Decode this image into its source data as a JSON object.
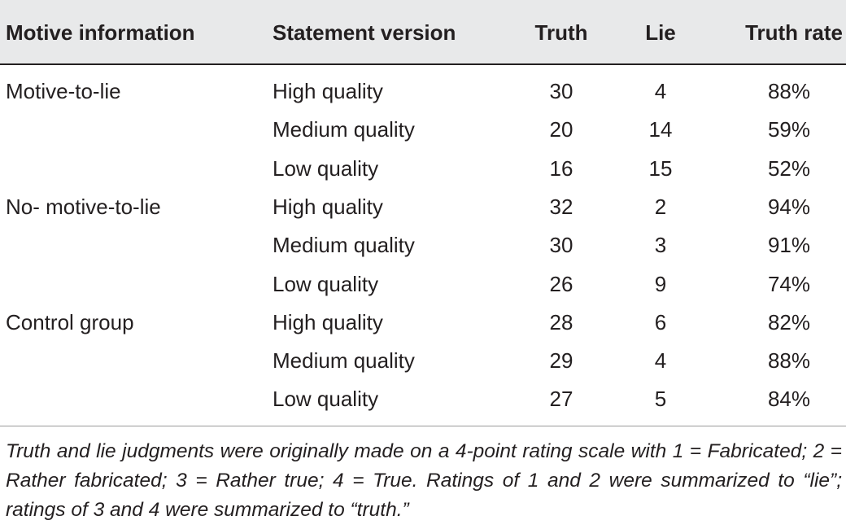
{
  "table": {
    "headers": {
      "motive": "Motive information",
      "version": "Statement version",
      "truth": "Truth",
      "lie": "Lie",
      "rate": "Truth rate"
    },
    "rows": [
      {
        "motive": "Motive-to-lie",
        "version": "High quality",
        "truth": "30",
        "lie": "4",
        "rate": "88%"
      },
      {
        "motive": "",
        "version": "Medium quality",
        "truth": "20",
        "lie": "14",
        "rate": "59%"
      },
      {
        "motive": "",
        "version": "Low quality",
        "truth": "16",
        "lie": "15",
        "rate": "52%"
      },
      {
        "motive": "No- motive-to-lie",
        "version": "High quality",
        "truth": "32",
        "lie": "2",
        "rate": "94%"
      },
      {
        "motive": "",
        "version": "Medium quality",
        "truth": "30",
        "lie": "3",
        "rate": "91%"
      },
      {
        "motive": "",
        "version": "Low quality",
        "truth": "26",
        "lie": "9",
        "rate": "74%"
      },
      {
        "motive": "Control group",
        "version": "High quality",
        "truth": "28",
        "lie": "6",
        "rate": "82%"
      },
      {
        "motive": "",
        "version": "Medium quality",
        "truth": "29",
        "lie": "4",
        "rate": "88%"
      },
      {
        "motive": "",
        "version": "Low quality",
        "truth": "27",
        "lie": "5",
        "rate": "84%"
      }
    ],
    "footnote": "Truth and lie judgments were originally made on a 4-point rating scale with 1 = Fabricated; 2 = Rather fabricated; 3 = Rather true; 4 = True. Ratings of 1 and 2 were summarized to “lie”; ratings of 3 and 4 were summarized to “truth.”"
  }
}
